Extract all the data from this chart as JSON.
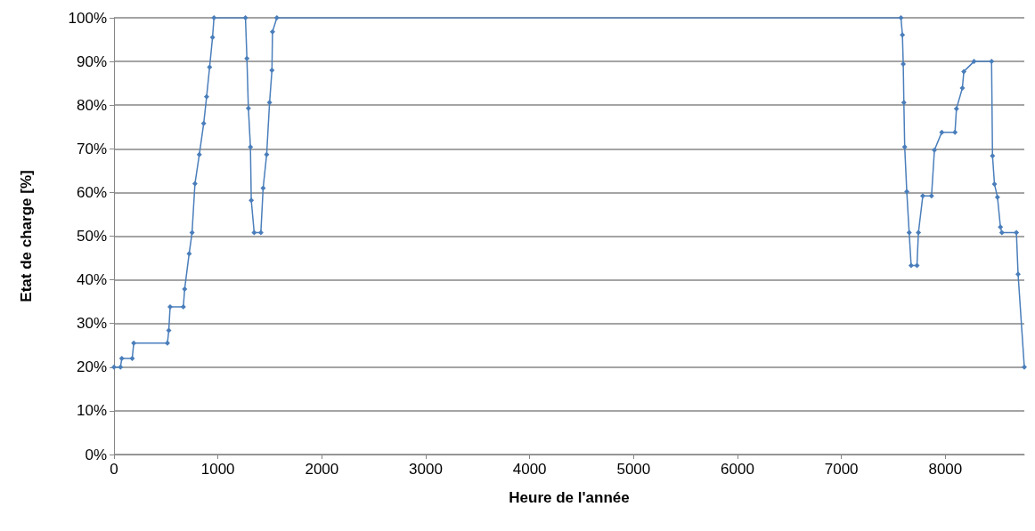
{
  "chart_data": {
    "type": "line",
    "xlabel": "Heure de l'année",
    "ylabel": "Etat de charge [%]",
    "xlim": [
      0,
      8760
    ],
    "xticks": [
      0,
      1000,
      2000,
      3000,
      4000,
      5000,
      6000,
      7000,
      8000
    ],
    "ylim": [
      0,
      100
    ],
    "yticks": [
      {
        "value": 0,
        "label": "0%"
      },
      {
        "value": 10,
        "label": "10%"
      },
      {
        "value": 20,
        "label": "20%"
      },
      {
        "value": 30,
        "label": "30%"
      },
      {
        "value": 40,
        "label": "40%"
      },
      {
        "value": 50,
        "label": "50%"
      },
      {
        "value": 60,
        "label": "60%"
      },
      {
        "value": 70,
        "label": "70%"
      },
      {
        "value": 80,
        "label": "80%"
      },
      {
        "value": 90,
        "label": "90%"
      },
      {
        "value": 100,
        "label": "100%"
      }
    ],
    "grid": "y",
    "marker": "diamond",
    "line_style": "solid",
    "series": [
      {
        "color": "#4a7ebb",
        "x": [
          0,
          62,
          75,
          175,
          190,
          514,
          527,
          540,
          667,
          680,
          723,
          751,
          779,
          821,
          863,
          891,
          920,
          948,
          962,
          1265,
          1279,
          1293,
          1313,
          1321,
          1349,
          1413,
          1435,
          1469,
          1497,
          1520,
          1525,
          1567,
          7573,
          7587,
          7595,
          7601,
          7609,
          7629,
          7652,
          7671,
          7727,
          7741,
          7783,
          7867,
          7895,
          7966,
          8093,
          8107,
          8164,
          8178,
          8276,
          8445,
          8454,
          8473,
          8502,
          8530,
          8544,
          8684,
          8700,
          8760
        ],
        "values": [
          20,
          20,
          22,
          22,
          25.5,
          25.5,
          28.4,
          33.8,
          33.8,
          37.9,
          46,
          50.8,
          62,
          68.7,
          75.8,
          81.9,
          88.7,
          95.5,
          100,
          100,
          90.7,
          79.3,
          70.4,
          58.2,
          50.8,
          50.8,
          61,
          68.7,
          80.6,
          88,
          96.8,
          100,
          100,
          96.1,
          89.4,
          80.6,
          70.4,
          60.2,
          50.8,
          43.3,
          43.3,
          50.8,
          59.2,
          59.2,
          69.7,
          73.8,
          73.8,
          79.2,
          83.9,
          87.7,
          90,
          90,
          68.4,
          61.9,
          58.9,
          52.1,
          50.8,
          50.8,
          41.3,
          20
        ]
      }
    ]
  }
}
